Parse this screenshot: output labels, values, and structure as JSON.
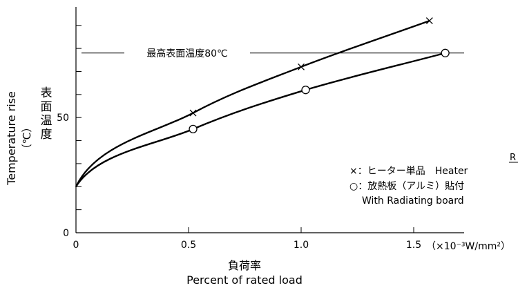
{
  "chart_data": {
    "type": "line",
    "xlabel": "負荷率",
    "xlabel_en": "Percent of rated load",
    "x_unit": "（×10⁻³W/mm²）",
    "ylabel": "Temperature rise",
    "ylabel_unit": "（℃）",
    "ylabel_ja": "表面温度",
    "xlim": [
      0,
      1.75
    ],
    "ylim": [
      0,
      94
    ],
    "x_ticks": [
      0,
      0.5,
      1.0,
      1.5
    ],
    "x_tick_labels": [
      "0",
      "0.5",
      "1.0",
      "1.5"
    ],
    "y_ticks": [
      0,
      50
    ],
    "y_tick_labels": [
      "0",
      "50"
    ],
    "y_minor_ticks": [
      10,
      20,
      30,
      40,
      60,
      70,
      80,
      90
    ],
    "series": [
      {
        "name": "×：ヒーター単品　Heater",
        "marker": "x",
        "points": [
          [
            0,
            20
          ],
          [
            0.52,
            52
          ],
          [
            1.0,
            72
          ],
          [
            1.57,
            92
          ]
        ]
      },
      {
        "name": "○：放熱板（アルミ）貼付",
        "name_line2": "With Radiating board",
        "marker": "circle",
        "points": [
          [
            0,
            20
          ],
          [
            0.52,
            45
          ],
          [
            1.02,
            62
          ],
          [
            1.64,
            78
          ]
        ]
      }
    ],
    "reference_line": {
      "y": 78,
      "label": "最高表面温度80℃"
    },
    "edge_fragment": "R"
  }
}
